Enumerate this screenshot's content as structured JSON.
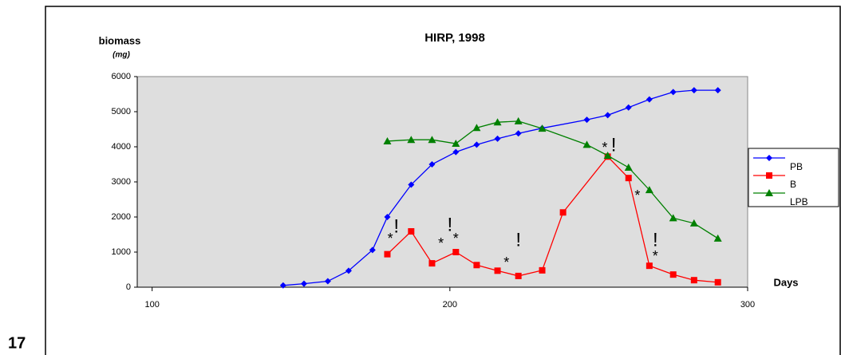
{
  "page_number": "17",
  "chart_data": {
    "type": "line",
    "title": "HIRP, 1998",
    "y_label": "biomass",
    "y_unit": "(mg)",
    "x_label": "Days",
    "xlim": [
      95,
      300
    ],
    "xticks": [
      100,
      200,
      300
    ],
    "ylim": [
      0,
      6000
    ],
    "yticks": [
      0,
      1000,
      2000,
      3000,
      4000,
      5000,
      6000
    ],
    "legend": "right",
    "series": [
      {
        "name": "PB",
        "color": "#0000ff",
        "marker": "diamond",
        "x": [
          144,
          151,
          159,
          166,
          174,
          179,
          187,
          194,
          202,
          209,
          216,
          223,
          231,
          246,
          253,
          260,
          267,
          275,
          282,
          290
        ],
        "values": [
          50,
          100,
          170,
          470,
          1060,
          2000,
          2920,
          3500,
          3850,
          4060,
          4230,
          4380,
          4530,
          4770,
          4900,
          5120,
          5350,
          5560,
          5610,
          5610
        ]
      },
      {
        "name": "B",
        "color": "#ff0000",
        "marker": "square",
        "x": [
          179,
          187,
          194,
          202,
          209,
          216,
          223,
          231,
          238,
          253,
          260,
          267,
          275,
          282,
          290
        ],
        "values": [
          940,
          1590,
          680,
          1000,
          630,
          470,
          320,
          480,
          2130,
          3720,
          3110,
          610,
          360,
          200,
          140
        ]
      },
      {
        "name": "LPB",
        "color": "#008000",
        "marker": "triangle",
        "x": [
          179,
          187,
          194,
          202,
          209,
          216,
          223,
          231,
          246,
          253,
          260,
          267,
          275,
          282,
          290
        ],
        "values": [
          4160,
          4200,
          4200,
          4090,
          4540,
          4700,
          4730,
          4520,
          4060,
          3750,
          3410,
          2770,
          1970,
          1820,
          1390
        ]
      }
    ],
    "annotations": [
      {
        "text": "*",
        "x": 180,
        "y": 1360
      },
      {
        "text": "!",
        "x": 182,
        "y": 1700
      },
      {
        "text": "*",
        "x": 197,
        "y": 1220
      },
      {
        "text": "!",
        "x": 200,
        "y": 1750
      },
      {
        "text": "*",
        "x": 202,
        "y": 1360
      },
      {
        "text": "*",
        "x": 219,
        "y": 680
      },
      {
        "text": "!",
        "x": 223,
        "y": 1320
      },
      {
        "text": "*",
        "x": 252,
        "y": 3950
      },
      {
        "text": "!",
        "x": 255,
        "y": 4020
      },
      {
        "text": "*",
        "x": 263,
        "y": 2590
      },
      {
        "text": "!",
        "x": 269,
        "y": 1320
      },
      {
        "text": "*",
        "x": 269,
        "y": 860
      }
    ]
  }
}
